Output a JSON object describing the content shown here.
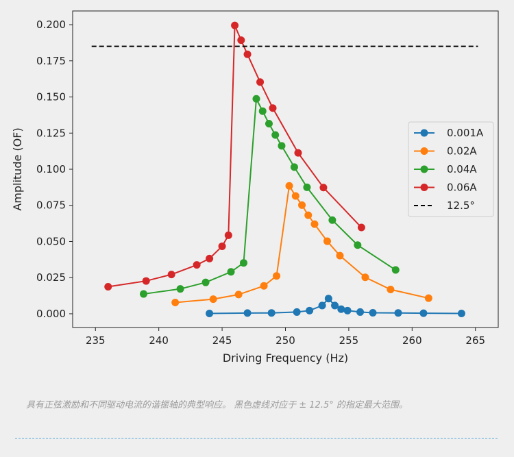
{
  "chart_data": {
    "type": "line",
    "xlabel": "Driving Frequency (Hz)",
    "ylabel": "Amplitude (OF)",
    "xlim": [
      233.2,
      266.8
    ],
    "ylim": [
      -0.0095,
      0.2095
    ],
    "xticks": [
      235,
      240,
      245,
      250,
      255,
      260,
      265
    ],
    "yticks": [
      0.0,
      0.025,
      0.05,
      0.075,
      0.1,
      0.125,
      0.15,
      0.175,
      0.2
    ],
    "xtick_labels": [
      "235",
      "240",
      "245",
      "250",
      "255",
      "260",
      "265"
    ],
    "ytick_labels": [
      "0.000",
      "0.025",
      "0.050",
      "0.075",
      "0.100",
      "0.125",
      "0.150",
      "0.175",
      "0.200"
    ],
    "grid": false,
    "legend_position": "center-right",
    "series": [
      {
        "name": "0.001A",
        "color": "#1f77b4",
        "marker": "circle",
        "x": [
          244.0,
          247.0,
          248.9,
          250.9,
          251.9,
          252.9,
          253.4,
          253.9,
          254.4,
          254.9,
          255.9,
          256.9,
          258.9,
          260.9,
          263.9
        ],
        "y": [
          0.0002,
          0.0005,
          0.0006,
          0.0012,
          0.0022,
          0.0057,
          0.0105,
          0.0057,
          0.0032,
          0.0022,
          0.0012,
          0.0007,
          0.0006,
          0.0004,
          0.0002
        ]
      },
      {
        "name": "0.02A",
        "color": "#ff7f0e",
        "marker": "circle",
        "x": [
          241.3,
          244.3,
          246.3,
          248.3,
          249.3,
          250.3,
          250.8,
          251.3,
          251.8,
          252.3,
          253.3,
          254.3,
          256.3,
          258.3,
          261.3
        ],
        "y": [
          0.0078,
          0.0101,
          0.0133,
          0.0193,
          0.0262,
          0.0885,
          0.0815,
          0.0752,
          0.0682,
          0.062,
          0.0502,
          0.0402,
          0.0252,
          0.0168,
          0.0108
        ]
      },
      {
        "name": "0.04A",
        "color": "#2ca02c",
        "marker": "circle",
        "x": [
          238.8,
          241.7,
          243.7,
          245.7,
          246.7,
          247.7,
          248.2,
          248.7,
          249.2,
          249.7,
          250.7,
          251.7,
          253.7,
          255.7,
          258.7
        ],
        "y": [
          0.0137,
          0.0172,
          0.0217,
          0.029,
          0.0352,
          0.1487,
          0.1402,
          0.1315,
          0.1237,
          0.1162,
          0.1015,
          0.0875,
          0.0648,
          0.0475,
          0.0303
        ]
      },
      {
        "name": "0.06A",
        "color": "#d62728",
        "marker": "circle",
        "x": [
          236.0,
          239.0,
          241.0,
          243.0,
          244.0,
          245.0,
          245.5,
          246.0,
          246.5,
          247.0,
          248.0,
          249.0,
          251.0,
          253.0,
          256.0
        ],
        "y": [
          0.0187,
          0.0227,
          0.0272,
          0.0338,
          0.0382,
          0.0467,
          0.0543,
          0.1995,
          0.1893,
          0.1795,
          0.1603,
          0.1423,
          0.1113,
          0.0873,
          0.0597
        ]
      },
      {
        "name": "12.5°",
        "color": "#000000",
        "dashed": true,
        "x": [
          234.7,
          265.2
        ],
        "y": [
          0.185,
          0.185
        ]
      }
    ]
  },
  "caption": "具有正弦激励和不同驱动电流的谐振轴的典型响应。 黑色虚线对应于 ± 12.5° 的指定最大范围。"
}
